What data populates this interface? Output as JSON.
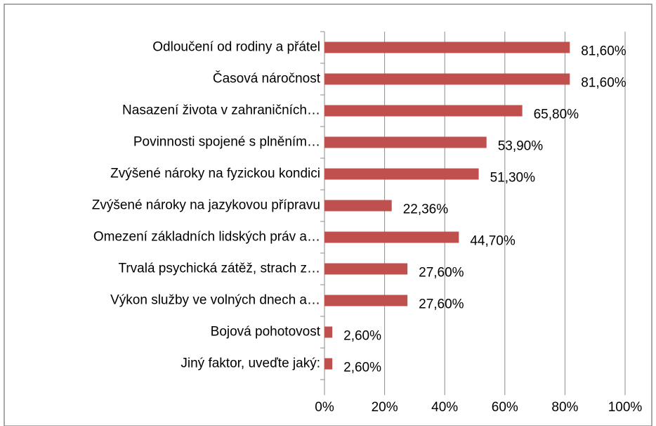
{
  "chart_data": {
    "type": "bar",
    "orientation": "horizontal",
    "categories": [
      "Odloučení od rodiny a přátel",
      "Časová náročnost",
      "Nasazení života v zahraničních…",
      "Povinnosti spojené s plněním…",
      "Zvýšené nároky na fyzickou kondici",
      "Zvýšené nároky na jazykovou přípravu",
      "Omezení základních lidských práv a…",
      "Trvalá psychická zátěž, strach z…",
      "Výkon služby ve volných dnech a…",
      "Bojová pohotovost",
      "Jiný faktor, uveďte jaký:"
    ],
    "values": [
      81.6,
      81.6,
      65.8,
      53.9,
      51.3,
      22.36,
      44.7,
      27.6,
      27.6,
      2.6,
      2.6
    ],
    "value_labels": [
      "81,60%",
      "81,60%",
      "65,80%",
      "53,90%",
      "51,30%",
      "22,36%",
      "44,70%",
      "27,60%",
      "27,60%",
      "2,60%",
      "2,60%"
    ],
    "color": "#c0504d",
    "xlim": [
      0,
      100
    ],
    "xticks": [
      {
        "value": 0,
        "label": "0%"
      },
      {
        "value": 20,
        "label": "20%"
      },
      {
        "value": 40,
        "label": "40%"
      },
      {
        "value": 60,
        "label": "60%"
      },
      {
        "value": 80,
        "label": "80%"
      },
      {
        "value": 100,
        "label": "100%"
      }
    ],
    "grid": true
  }
}
